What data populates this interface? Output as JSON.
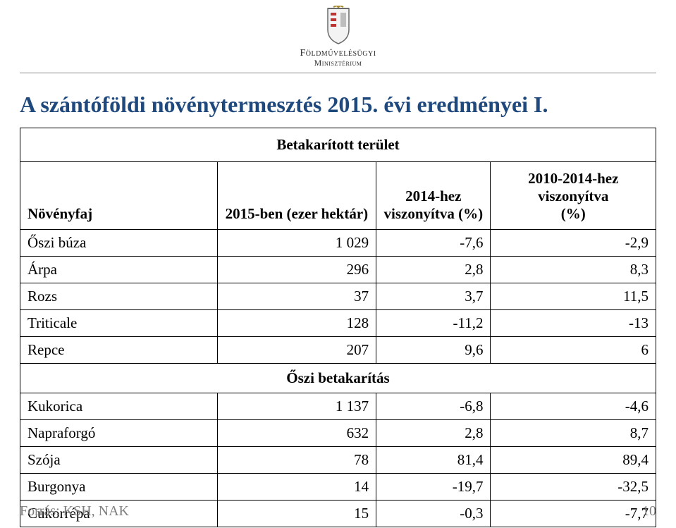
{
  "header": {
    "ministry_line1": "Földművelésügyi",
    "ministry_line2": "Minisztérium"
  },
  "title": "A szántóföldi növénytermesztés 2015. évi eredményei I.",
  "table": {
    "band_header": "Betakarított terület",
    "columns": {
      "c1": "Növényfaj",
      "c2": "2015-ben (ezer hektár)",
      "c3_l1": "2014-hez",
      "c3_l2": "viszonyítva (%)",
      "c4_l1": "2010-2014-hez viszonyítva",
      "c4_l2": "(%)"
    },
    "rows_top": [
      {
        "label": "Őszi búza",
        "v1": "1 029",
        "v2": "-7,6",
        "v3": "-2,9"
      },
      {
        "label": "Árpa",
        "v1": "296",
        "v2": "2,8",
        "v3": "8,3"
      },
      {
        "label": "Rozs",
        "v1": "37",
        "v2": "3,7",
        "v3": "11,5"
      },
      {
        "label": "Triticale",
        "v1": "128",
        "v2": "-11,2",
        "v3": "-13"
      },
      {
        "label": "Repce",
        "v1": "207",
        "v2": "9,6",
        "v3": "6"
      }
    ],
    "section": "Őszi betakarítás",
    "rows_bottom": [
      {
        "label": "Kukorica",
        "v1": "1 137",
        "v2": "-6,8",
        "v3": "-4,6"
      },
      {
        "label": "Napraforgó",
        "v1": "632",
        "v2": "2,8",
        "v3": "8,7"
      },
      {
        "label": "Szója",
        "v1": "78",
        "v2": "81,4",
        "v3": "89,4"
      },
      {
        "label": "Burgonya",
        "v1": "14",
        "v2": "-19,7",
        "v3": "-32,5"
      },
      {
        "label": "Cukorrépa",
        "v1": "15",
        "v2": "-0,3",
        "v3": "-7,7"
      }
    ]
  },
  "footer": {
    "source": "Forrás: KSH, NAK",
    "page": "10"
  },
  "colors": {
    "title": "#1f497d",
    "border": "#000000",
    "text": "#000000",
    "muted": "#7e7e7e",
    "rule": "#888888",
    "bg": "#ffffff"
  }
}
